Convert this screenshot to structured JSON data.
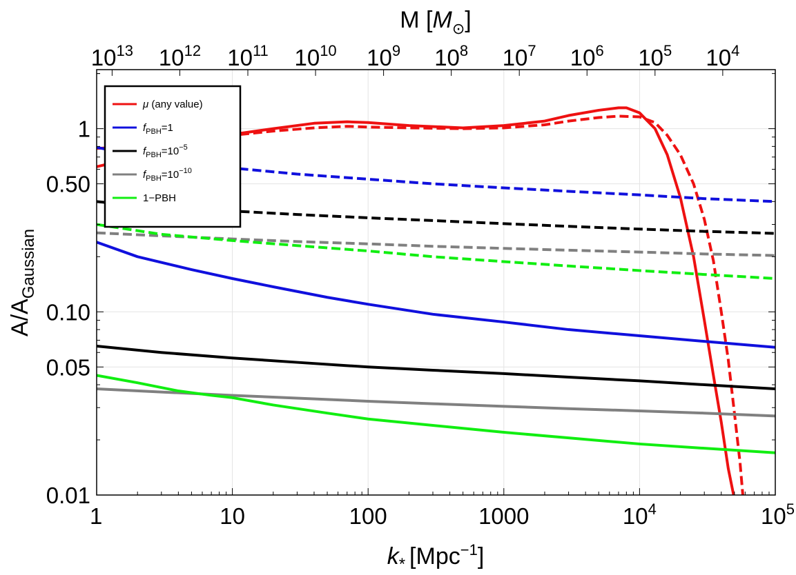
{
  "chart_data": {
    "type": "line",
    "x_scale": "log",
    "y_scale": "log",
    "xlim": [
      1,
      100000
    ],
    "ylim": [
      0.01,
      2.1
    ],
    "grid": true,
    "xlabel": {
      "main": "k",
      "sub": "*",
      "unit_open": "[Mpc",
      "unit_sup": "−1",
      "unit_close": "]"
    },
    "ylabel": {
      "main": "A/A",
      "sub": "Gaussian"
    },
    "top_axis": {
      "label_prefix": "M [",
      "label_italic": "M",
      "label_sub": "⊙",
      "label_suffix": "]",
      "ticks": [
        {
          "x": 1.3,
          "base": "10",
          "exp": "13"
        },
        {
          "x": 4.1,
          "base": "10",
          "exp": "12"
        },
        {
          "x": 13,
          "base": "10",
          "exp": "11"
        },
        {
          "x": 41,
          "base": "10",
          "exp": "10"
        },
        {
          "x": 130,
          "base": "10",
          "exp": "9"
        },
        {
          "x": 410,
          "base": "10",
          "exp": "8"
        },
        {
          "x": 1300,
          "base": "10",
          "exp": "7"
        },
        {
          "x": 4100,
          "base": "10",
          "exp": "6"
        },
        {
          "x": 13000,
          "base": "10",
          "exp": "5"
        },
        {
          "x": 41000,
          "base": "10",
          "exp": "4"
        }
      ]
    },
    "x_ticks": [
      {
        "value": 1,
        "label": "1"
      },
      {
        "value": 10,
        "label": "10"
      },
      {
        "value": 100,
        "label": "100"
      },
      {
        "value": 1000,
        "label": "1000"
      },
      {
        "value": 10000,
        "label": "10",
        "exp": "4"
      },
      {
        "value": 100000,
        "label": "10",
        "exp": "5"
      }
    ],
    "y_ticks": [
      {
        "value": 0.01,
        "label": "0.01"
      },
      {
        "value": 0.05,
        "label": "0.05"
      },
      {
        "value": 0.1,
        "label": "0.10"
      },
      {
        "value": 0.5,
        "label": "0.50"
      },
      {
        "value": 1,
        "label": "1"
      }
    ],
    "legend": {
      "placement": "top-left",
      "entries": [
        {
          "color": "#ee1111",
          "italic": "μ",
          "text": " (any value)"
        },
        {
          "color": "#1010dd",
          "italic": "f",
          "sub": "PBH",
          "text": "=1"
        },
        {
          "color": "#000000",
          "italic": "f",
          "sub": "PBH",
          "text": "=10",
          "sup": "−5"
        },
        {
          "color": "#808080",
          "italic": "f",
          "sub": "PBH",
          "text": "=10",
          "sup": "−10"
        },
        {
          "color": "#11ee11",
          "text": "1−PBH"
        }
      ]
    },
    "series": [
      {
        "color": "#ee1111",
        "style": "solid",
        "x": [
          1,
          2,
          3,
          5,
          10,
          20,
          40,
          70,
          100,
          200,
          500,
          1000,
          2000,
          3000,
          5000,
          7000,
          8000,
          10000,
          13000,
          16000,
          20000,
          25000,
          30000,
          35000,
          40000,
          45000,
          50000
        ],
        "y": [
          0.62,
          0.7,
          0.77,
          0.85,
          0.93,
          1.0,
          1.07,
          1.09,
          1.08,
          1.04,
          1.01,
          1.04,
          1.1,
          1.18,
          1.26,
          1.3,
          1.3,
          1.22,
          1.0,
          0.72,
          0.42,
          0.2,
          0.09,
          0.045,
          0.025,
          0.014,
          0.0095
        ]
      },
      {
        "color": "#ee1111",
        "style": "dashed",
        "x": [
          1,
          2,
          3,
          5,
          10,
          20,
          40,
          70,
          100,
          200,
          500,
          1000,
          2000,
          3000,
          5000,
          7000,
          10000,
          13000,
          16000,
          20000,
          25000,
          30000,
          35000,
          40000,
          45000,
          50000,
          55000,
          58000
        ],
        "y": [
          0.78,
          0.8,
          0.83,
          0.87,
          0.92,
          0.97,
          1.01,
          1.03,
          1.02,
          1.01,
          1.0,
          1.01,
          1.05,
          1.1,
          1.15,
          1.17,
          1.16,
          1.08,
          0.92,
          0.72,
          0.5,
          0.32,
          0.19,
          0.1,
          0.055,
          0.028,
          0.015,
          0.0095
        ]
      },
      {
        "color": "#1010dd",
        "style": "solid",
        "x": [
          1,
          2,
          5,
          10,
          20,
          50,
          100,
          300,
          1000,
          3000,
          10000,
          30000,
          100000
        ],
        "y": [
          0.24,
          0.2,
          0.17,
          0.152,
          0.137,
          0.12,
          0.11,
          0.097,
          0.088,
          0.08,
          0.074,
          0.069,
          0.064
        ]
      },
      {
        "color": "#1010dd",
        "style": "dashed",
        "x": [
          1,
          3,
          10,
          30,
          100,
          300,
          1000,
          3000,
          10000,
          30000,
          100000
        ],
        "y": [
          0.79,
          0.68,
          0.61,
          0.565,
          0.53,
          0.5,
          0.475,
          0.455,
          0.435,
          0.415,
          0.4
        ]
      },
      {
        "color": "#000000",
        "style": "solid",
        "x": [
          1,
          3,
          10,
          30,
          100,
          300,
          1000,
          3000,
          10000,
          30000,
          100000
        ],
        "y": [
          0.065,
          0.06,
          0.056,
          0.053,
          0.05,
          0.048,
          0.046,
          0.044,
          0.042,
          0.04,
          0.038
        ]
      },
      {
        "color": "#000000",
        "style": "dashed",
        "x": [
          1,
          3,
          10,
          30,
          100,
          300,
          1000,
          3000,
          10000,
          30000,
          100000
        ],
        "y": [
          0.4,
          0.37,
          0.355,
          0.34,
          0.326,
          0.315,
          0.303,
          0.293,
          0.283,
          0.275,
          0.268
        ]
      },
      {
        "color": "#808080",
        "style": "solid",
        "x": [
          1,
          3,
          10,
          30,
          100,
          300,
          1000,
          3000,
          10000,
          30000,
          100000
        ],
        "y": [
          0.038,
          0.0365,
          0.035,
          0.0338,
          0.0325,
          0.0315,
          0.0305,
          0.0296,
          0.0288,
          0.028,
          0.027
        ]
      },
      {
        "color": "#808080",
        "style": "dashed",
        "x": [
          1,
          3,
          10,
          30,
          100,
          300,
          1000,
          3000,
          10000,
          30000,
          100000
        ],
        "y": [
          0.27,
          0.26,
          0.25,
          0.242,
          0.235,
          0.228,
          0.222,
          0.217,
          0.212,
          0.207,
          0.203
        ]
      },
      {
        "color": "#11ee11",
        "style": "solid",
        "x": [
          1,
          2,
          4,
          7,
          10,
          20,
          50,
          100,
          300,
          1000,
          3000,
          10000,
          30000,
          100000
        ],
        "y": [
          0.045,
          0.041,
          0.037,
          0.035,
          0.034,
          0.031,
          0.028,
          0.026,
          0.024,
          0.022,
          0.0205,
          0.019,
          0.018,
          0.017
        ]
      },
      {
        "color": "#11ee11",
        "style": "dashed",
        "x": [
          1,
          3,
          10,
          30,
          100,
          300,
          1000,
          3000,
          10000,
          30000,
          100000
        ],
        "y": [
          0.3,
          0.265,
          0.245,
          0.23,
          0.215,
          0.2,
          0.188,
          0.178,
          0.168,
          0.16,
          0.152
        ]
      }
    ]
  }
}
